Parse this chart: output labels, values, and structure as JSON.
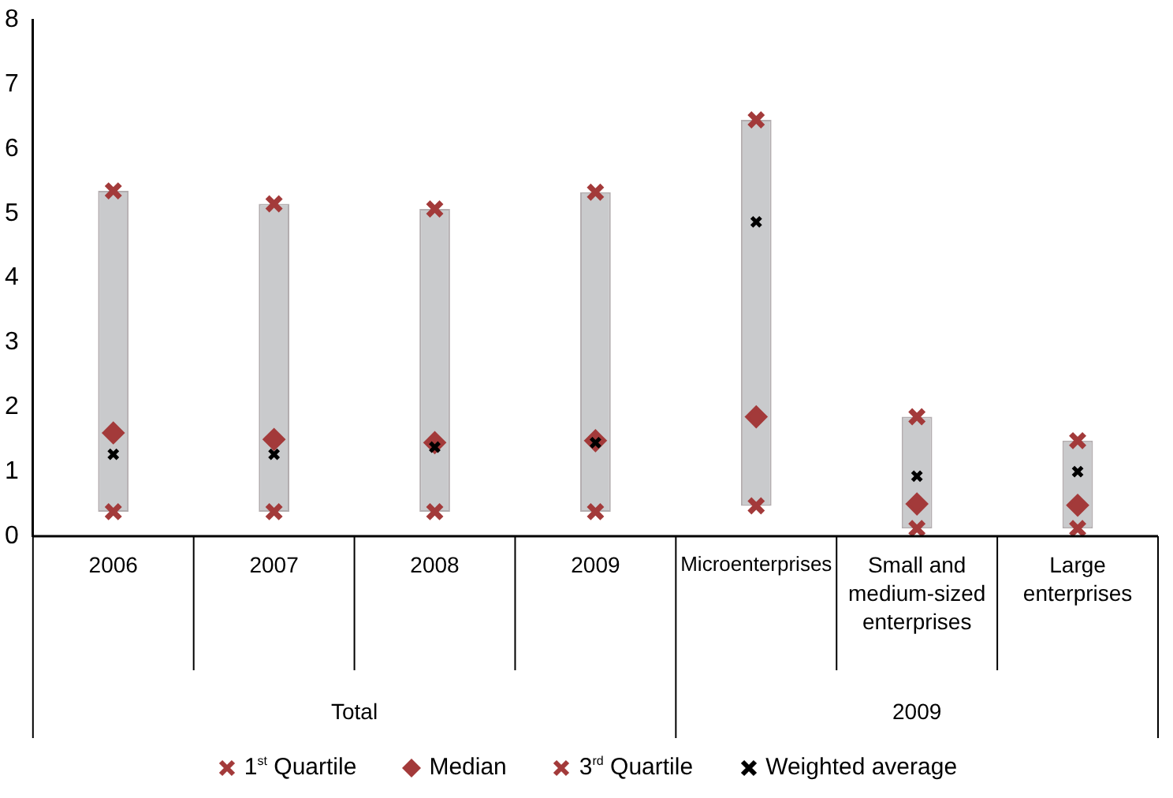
{
  "chart_data": {
    "type": "bar",
    "categories": [
      "2006",
      "2007",
      "2008",
      "2009",
      "Microenterprises",
      "Small and medium-sized enterprises",
      "Large enterprises"
    ],
    "annotations": [
      "Total",
      "2009"
    ],
    "ylim": [
      0,
      8
    ],
    "yticks": [
      0,
      1,
      2,
      3,
      4,
      5,
      6,
      7,
      8
    ],
    "grid": false,
    "legend": "bottom",
    "series": [
      {
        "color": "#c9cacc",
        "base": [
          0.38,
          0.38,
          0.38,
          0.38,
          0.47,
          0.12,
          0.12
        ],
        "values": [
          4.97,
          4.77,
          4.69,
          4.95,
          5.98,
          1.73,
          1.36
        ]
      },
      {
        "type": "scatter",
        "name": "1$^{st}$ Quartile",
        "color": "#a33a3a",
        "marker": "cross",
        "values": [
          0.38,
          0.38,
          0.38,
          0.38,
          0.47,
          0.12,
          0.12
        ]
      },
      {
        "type": "scatter",
        "name": "Median",
        "color": "#a33a3a",
        "marker": "diamond",
        "values": [
          1.6,
          1.5,
          1.45,
          1.48,
          1.85,
          0.5,
          0.48
        ]
      },
      {
        "type": "scatter",
        "name": "3$^{rd}$ Quartile",
        "color": "#a33a3a",
        "marker": "cross",
        "values": [
          5.35,
          5.15,
          5.07,
          5.33,
          6.45,
          1.85,
          1.48
        ]
      },
      {
        "type": "scatter",
        "name": "Weighted average",
        "color": "#000000",
        "marker": "cross",
        "values": [
          1.27,
          1.27,
          1.38,
          1.45,
          4.87,
          0.93,
          1.0
        ]
      }
    ]
  }
}
